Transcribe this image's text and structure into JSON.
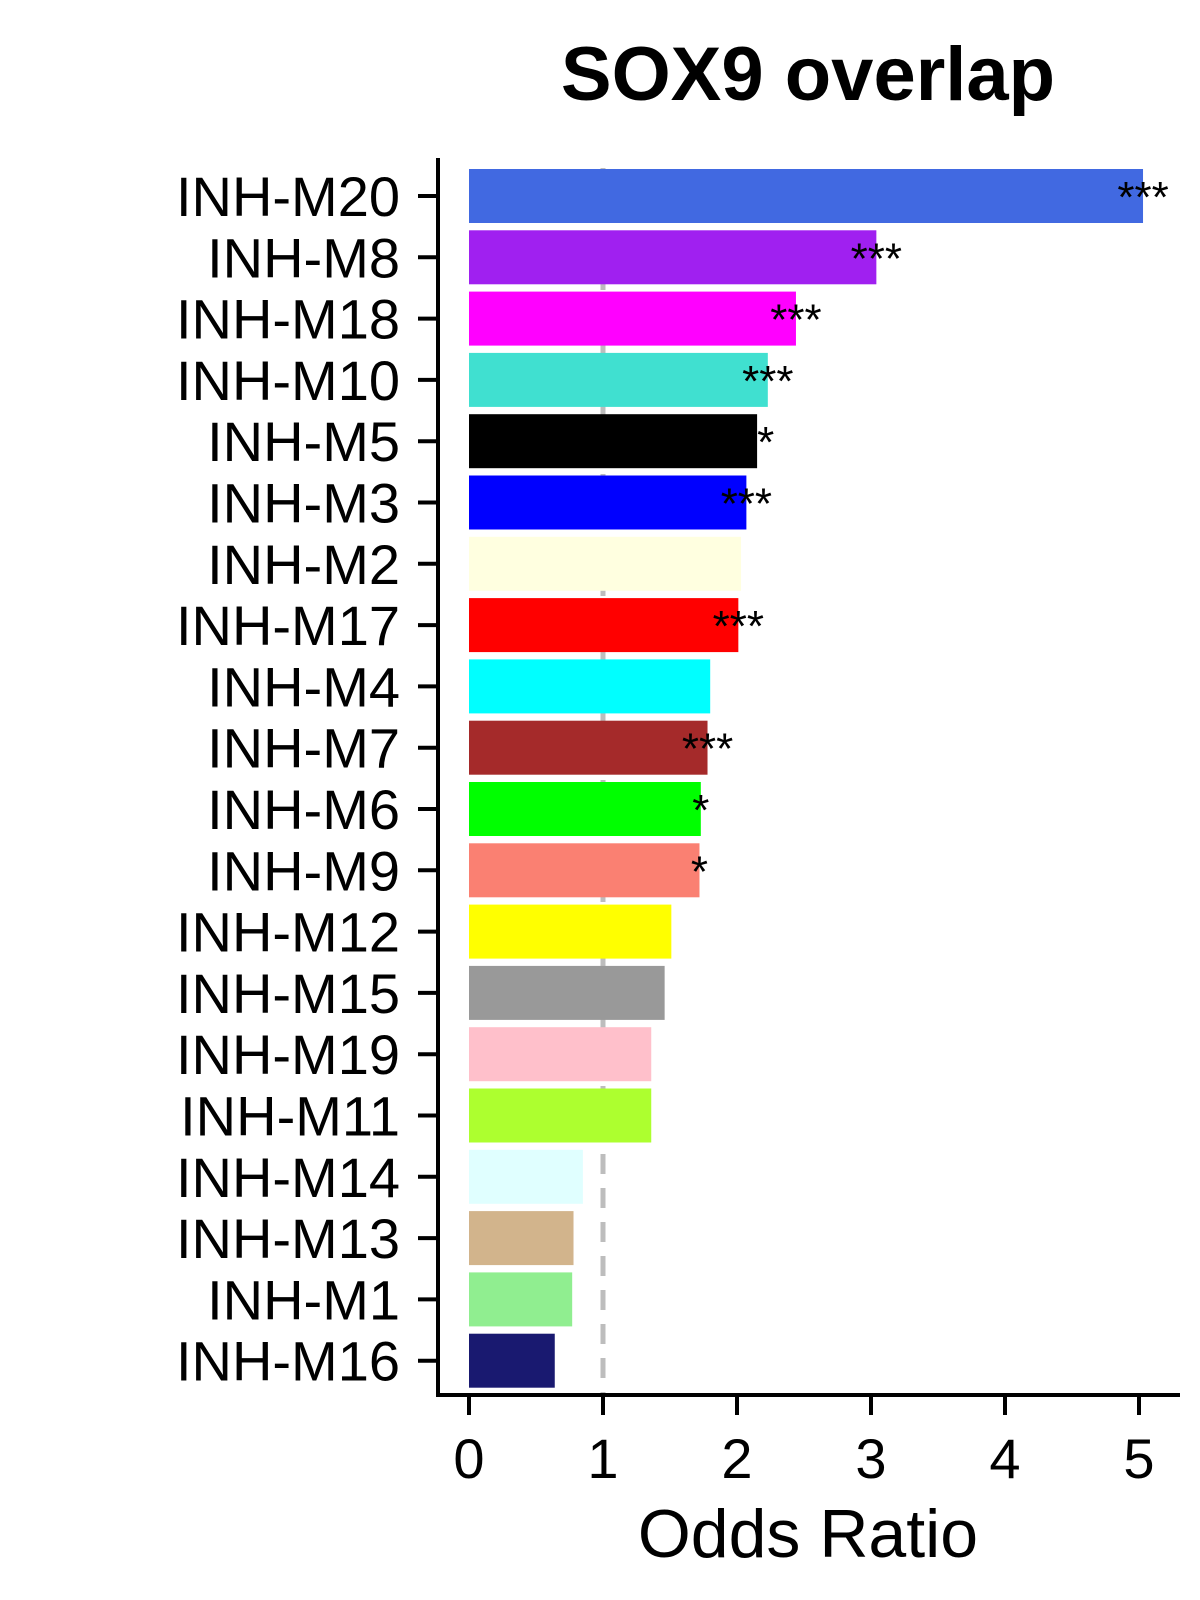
{
  "chart_data": {
    "type": "bar",
    "orientation": "horizontal",
    "title": "SOX9 overlap",
    "xlabel": "Odds Ratio",
    "ylabel": "",
    "xlim": [
      0,
      5.2
    ],
    "xticks": [
      0,
      1,
      2,
      3,
      4,
      5
    ],
    "reference_line": {
      "x": 1,
      "style": "dashed",
      "color": "#bdbdbd"
    },
    "grid": false,
    "bars": [
      {
        "label": "INH-M20",
        "value": 5.03,
        "sig": "***",
        "color": "#4169e1"
      },
      {
        "label": "INH-M8",
        "value": 3.04,
        "sig": "***",
        "color": "#a020f0"
      },
      {
        "label": "INH-M18",
        "value": 2.44,
        "sig": "***",
        "color": "#ff00ff"
      },
      {
        "label": "INH-M10",
        "value": 2.23,
        "sig": "***",
        "color": "#40e0d0"
      },
      {
        "label": "INH-M5",
        "value": 2.15,
        "sig": "**",
        "color": "#000000"
      },
      {
        "label": "INH-M3",
        "value": 2.07,
        "sig": "***",
        "color": "#0000ff"
      },
      {
        "label": "INH-M2",
        "value": 2.03,
        "sig": "",
        "color": "#ffffe0"
      },
      {
        "label": "INH-M17",
        "value": 2.01,
        "sig": "***",
        "color": "#ff0000"
      },
      {
        "label": "INH-M4",
        "value": 1.8,
        "sig": "",
        "color": "#00ffff"
      },
      {
        "label": "INH-M7",
        "value": 1.78,
        "sig": "***",
        "color": "#a52a2a"
      },
      {
        "label": "INH-M6",
        "value": 1.73,
        "sig": "*",
        "color": "#00ff00"
      },
      {
        "label": "INH-M9",
        "value": 1.72,
        "sig": "*",
        "color": "#fa8072"
      },
      {
        "label": "INH-M12",
        "value": 1.51,
        "sig": "",
        "color": "#ffff00"
      },
      {
        "label": "INH-M15",
        "value": 1.46,
        "sig": "",
        "color": "#999999"
      },
      {
        "label": "INH-M19",
        "value": 1.36,
        "sig": "",
        "color": "#ffc0cb"
      },
      {
        "label": "INH-M11",
        "value": 1.36,
        "sig": "",
        "color": "#adff2f"
      },
      {
        "label": "INH-M14",
        "value": 0.85,
        "sig": "",
        "color": "#e0ffff"
      },
      {
        "label": "INH-M13",
        "value": 0.78,
        "sig": "",
        "color": "#d2b48c"
      },
      {
        "label": "INH-M1",
        "value": 0.77,
        "sig": "",
        "color": "#90ee90"
      },
      {
        "label": "INH-M16",
        "value": 0.64,
        "sig": "",
        "color": "#191970"
      }
    ]
  }
}
